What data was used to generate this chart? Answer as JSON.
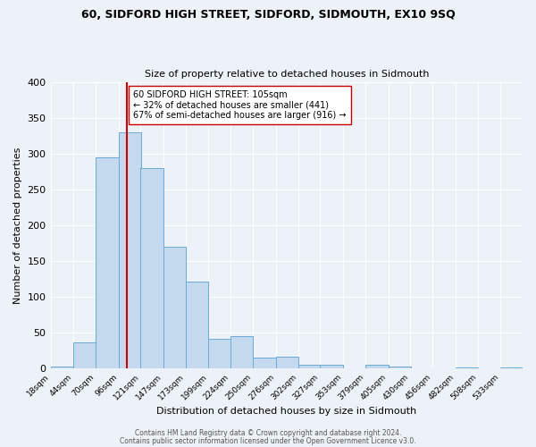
{
  "title1": "60, SIDFORD HIGH STREET, SIDFORD, SIDMOUTH, EX10 9SQ",
  "title2": "Size of property relative to detached houses in Sidmouth",
  "xlabel": "Distribution of detached houses by size in Sidmouth",
  "ylabel": "Number of detached properties",
  "bin_labels": [
    "18sqm",
    "44sqm",
    "70sqm",
    "96sqm",
    "121sqm",
    "147sqm",
    "173sqm",
    "199sqm",
    "224sqm",
    "250sqm",
    "276sqm",
    "302sqm",
    "327sqm",
    "353sqm",
    "379sqm",
    "405sqm",
    "430sqm",
    "456sqm",
    "482sqm",
    "508sqm",
    "533sqm"
  ],
  "bin_edges": [
    18,
    44,
    70,
    96,
    121,
    147,
    173,
    199,
    224,
    250,
    276,
    302,
    327,
    353,
    379,
    405,
    430,
    456,
    482,
    508,
    533
  ],
  "bar_heights": [
    3,
    37,
    295,
    330,
    280,
    170,
    122,
    42,
    46,
    15,
    17,
    5,
    6,
    0,
    6,
    3,
    0,
    0,
    2,
    0,
    2
  ],
  "bar_color": "#c5d9ee",
  "bar_edge_color": "#6aaad4",
  "bg_color": "#edf1f8",
  "grid_color": "#ffffff",
  "vline_x": 105,
  "vline_color": "#cc0000",
  "annotation_text": "60 SIDFORD HIGH STREET: 105sqm\n← 32% of detached houses are smaller (441)\n67% of semi-detached houses are larger (916) →",
  "annotation_box_color": "#ffffff",
  "annotation_box_edge": "#cc0000",
  "footer1": "Contains HM Land Registry data © Crown copyright and database right 2024.",
  "footer2": "Contains public sector information licensed under the Open Government Licence v3.0.",
  "ylim": [
    0,
    400
  ],
  "yticks": [
    0,
    50,
    100,
    150,
    200,
    250,
    300,
    350,
    400
  ]
}
